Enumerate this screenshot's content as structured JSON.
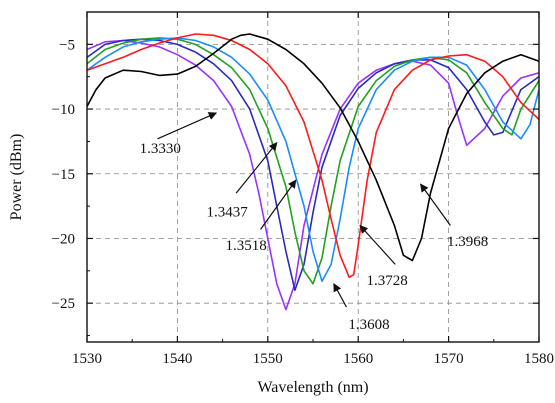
{
  "chart_data": {
    "type": "line",
    "title": "",
    "xlabel": "Wavelength (nm)",
    "ylabel": "Power (dBm)",
    "xlim": [
      1530,
      1580
    ],
    "ylim": [
      -28,
      -2.5
    ],
    "xticks": [
      "1530",
      "1540",
      "1550",
      "1560",
      "1570",
      "1580"
    ],
    "xtick_values": [
      1530,
      1540,
      1550,
      1560,
      1570,
      1580
    ],
    "yticks": [
      "−5",
      "−10",
      "−15",
      "−20",
      "−25"
    ],
    "ytick_values": [
      -5,
      -10,
      -15,
      -20,
      -25
    ],
    "grid": true,
    "series": [
      {
        "name": "1.3330",
        "color": "#9933ff",
        "x": [
          1530,
          1532,
          1534,
          1536,
          1538,
          1540,
          1542,
          1544,
          1546,
          1548,
          1549,
          1550,
          1551,
          1552,
          1553,
          1554,
          1556,
          1558,
          1560,
          1562,
          1564,
          1566,
          1568,
          1570,
          1571,
          1572,
          1574,
          1576,
          1578,
          1580
        ],
        "y": [
          -5.4,
          -4.8,
          -4.7,
          -4.9,
          -5.2,
          -5.8,
          -6.6,
          -7.8,
          -9.8,
          -13.5,
          -16.5,
          -20.0,
          -23.5,
          -25.5,
          -23.5,
          -19.0,
          -13.5,
          -10.0,
          -8.0,
          -7.0,
          -6.5,
          -6.3,
          -6.6,
          -8.0,
          -10.5,
          -12.8,
          -11.5,
          -9.0,
          -7.6,
          -7.2
        ]
      },
      {
        "name": "1.3437",
        "color": "#2a2abf",
        "x": [
          1530,
          1532,
          1534,
          1536,
          1538,
          1540,
          1542,
          1544,
          1546,
          1548,
          1550,
          1551,
          1552,
          1553,
          1554,
          1555,
          1556,
          1558,
          1560,
          1562,
          1564,
          1566,
          1568,
          1570,
          1572,
          1574,
          1575,
          1576,
          1578,
          1580
        ],
        "y": [
          -6.0,
          -5.0,
          -4.7,
          -4.6,
          -4.7,
          -5.0,
          -5.6,
          -6.5,
          -7.8,
          -10.0,
          -14.0,
          -17.5,
          -21.0,
          -24.0,
          -22.0,
          -18.0,
          -14.5,
          -10.5,
          -8.4,
          -7.2,
          -6.5,
          -6.2,
          -6.2,
          -6.8,
          -8.5,
          -11.0,
          -12.0,
          -11.8,
          -8.5,
          -7.5
        ]
      },
      {
        "name": "1.3518",
        "color": "#22a022",
        "x": [
          1530,
          1532,
          1534,
          1536,
          1538,
          1540,
          1542,
          1544,
          1546,
          1548,
          1550,
          1552,
          1553,
          1554,
          1555,
          1556,
          1557,
          1558,
          1560,
          1562,
          1564,
          1566,
          1568,
          1570,
          1572,
          1574,
          1576,
          1577,
          1578,
          1580
        ],
        "y": [
          -6.5,
          -5.4,
          -4.9,
          -4.6,
          -4.5,
          -4.6,
          -5.0,
          -5.8,
          -6.8,
          -8.5,
          -11.5,
          -16.0,
          -19.5,
          -22.5,
          -23.5,
          -21.5,
          -17.5,
          -14.0,
          -9.8,
          -7.8,
          -6.7,
          -6.2,
          -6.0,
          -6.2,
          -7.2,
          -9.5,
          -11.5,
          -12.0,
          -10.0,
          -7.8
        ]
      },
      {
        "name": "1.3608",
        "color": "#1a8cff",
        "x": [
          1530,
          1532,
          1534,
          1536,
          1538,
          1540,
          1542,
          1544,
          1546,
          1548,
          1550,
          1552,
          1554,
          1555,
          1556,
          1557,
          1558,
          1559,
          1560,
          1562,
          1564,
          1566,
          1568,
          1570,
          1572,
          1574,
          1576,
          1578,
          1579,
          1580
        ],
        "y": [
          -7.0,
          -6.0,
          -5.2,
          -4.8,
          -4.6,
          -4.5,
          -4.7,
          -5.2,
          -6.0,
          -7.3,
          -9.3,
          -12.5,
          -17.5,
          -21.0,
          -23.3,
          -22.0,
          -18.5,
          -14.5,
          -11.5,
          -8.5,
          -7.0,
          -6.3,
          -6.0,
          -6.0,
          -6.6,
          -8.5,
          -11.0,
          -12.3,
          -11.2,
          -8.5
        ]
      },
      {
        "name": "1.3728",
        "color": "#ff1a1a",
        "x": [
          1530,
          1532,
          1534,
          1536,
          1538,
          1540,
          1542,
          1544,
          1546,
          1548,
          1550,
          1552,
          1554,
          1556,
          1557,
          1558,
          1559,
          1559.5,
          1560,
          1561,
          1562,
          1564,
          1566,
          1568,
          1570,
          1572,
          1574,
          1576,
          1578,
          1580
        ],
        "y": [
          -7.0,
          -6.5,
          -6.0,
          -5.4,
          -4.9,
          -4.5,
          -4.2,
          -4.3,
          -4.7,
          -5.4,
          -6.5,
          -8.2,
          -11.0,
          -15.5,
          -18.5,
          -21.3,
          -23.0,
          -22.8,
          -20.5,
          -15.5,
          -11.8,
          -8.5,
          -7.0,
          -6.2,
          -5.9,
          -5.8,
          -6.3,
          -7.5,
          -9.5,
          -10.8
        ]
      },
      {
        "name": "1.3968",
        "color": "#000000",
        "x": [
          1530,
          1531,
          1532,
          1534,
          1536,
          1538,
          1540,
          1542,
          1544,
          1546,
          1547,
          1548,
          1550,
          1552,
          1554,
          1556,
          1558,
          1560,
          1562,
          1564,
          1565,
          1566,
          1567,
          1568,
          1570,
          1572,
          1574,
          1576,
          1578,
          1580
        ],
        "y": [
          -9.8,
          -8.5,
          -7.6,
          -7.0,
          -7.1,
          -7.4,
          -7.3,
          -6.7,
          -5.7,
          -4.6,
          -4.3,
          -4.2,
          -4.6,
          -5.4,
          -6.5,
          -8.0,
          -9.9,
          -12.5,
          -15.5,
          -19.0,
          -21.3,
          -21.7,
          -20.0,
          -16.5,
          -11.5,
          -8.8,
          -7.2,
          -6.3,
          -5.8,
          -6.3
        ]
      }
    ],
    "annotations": [
      {
        "text": "1.3330",
        "tx": 1538.1,
        "ty": -13.4,
        "ax": 1537.8,
        "ay": -12.3,
        "hx": 1544.3,
        "hy": -10.3
      },
      {
        "text": "1.3437",
        "tx": 1545.5,
        "ty": -18.3,
        "ax": 1546.5,
        "ay": -16.5,
        "hx": 1551.0,
        "hy": -12.6
      },
      {
        "text": "1.3518",
        "tx": 1547.6,
        "ty": -20.9,
        "ax": 1549.2,
        "ay": -19.3,
        "hx": 1553.1,
        "hy": -15.5
      },
      {
        "text": "1.3608",
        "tx": 1561.2,
        "ty": -27.0,
        "ax": 1558.7,
        "ay": -25.3,
        "hx": 1557.3,
        "hy": -23.5
      },
      {
        "text": "1.3728",
        "tx": 1563.2,
        "ty": -23.6,
        "ax": 1564.1,
        "ay": -22.0,
        "hx": 1560.2,
        "hy": -19.0
      },
      {
        "text": "1.3968",
        "tx": 1572.1,
        "ty": -20.6,
        "ax": 1570.2,
        "ay": -19.0,
        "hx": 1566.9,
        "hy": -15.8
      }
    ]
  }
}
